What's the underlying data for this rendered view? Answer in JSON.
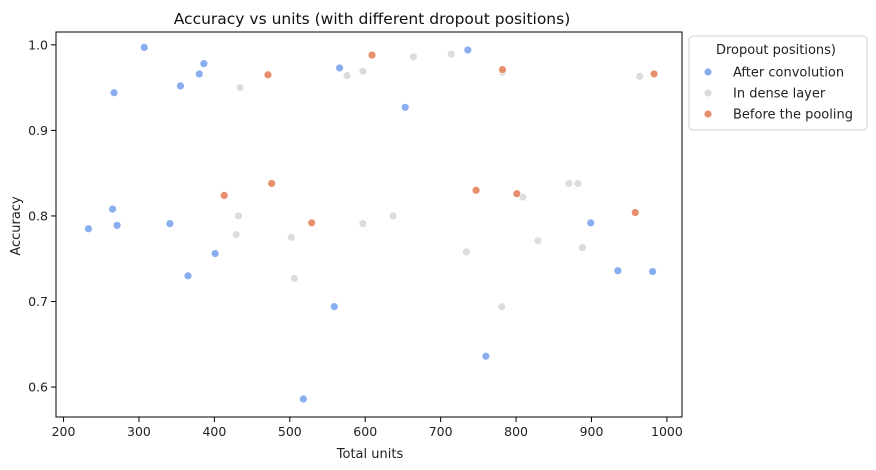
{
  "chart_data": {
    "type": "scatter",
    "title": "Accuracy vs units (with different dropout positions)",
    "xlabel": "Total units",
    "ylabel": "Accuracy",
    "xlim": [
      190,
      1020
    ],
    "ylim": [
      0.565,
      1.015
    ],
    "xticks": [
      200,
      300,
      400,
      500,
      600,
      700,
      800,
      900,
      1000
    ],
    "yticks": [
      0.6,
      0.7,
      0.8,
      0.9,
      1.0
    ],
    "ytick_labels": [
      "0.6",
      "0.7",
      "0.8",
      "0.9",
      "1.0"
    ],
    "grid": false,
    "legend": {
      "title": "Dropout positions)",
      "placement": "outside-top-right"
    },
    "series": [
      {
        "name": "After convolution",
        "color": "#88aef0",
        "points": [
          [
            233,
            0.785
          ],
          [
            265,
            0.808
          ],
          [
            267,
            0.944
          ],
          [
            271,
            0.789
          ],
          [
            307,
            0.997
          ],
          [
            341,
            0.791
          ],
          [
            355,
            0.952
          ],
          [
            365,
            0.73
          ],
          [
            380,
            0.966
          ],
          [
            386,
            0.978
          ],
          [
            401,
            0.756
          ],
          [
            518,
            0.586
          ],
          [
            559,
            0.694
          ],
          [
            566,
            0.973
          ],
          [
            653,
            0.927
          ],
          [
            736,
            0.994
          ],
          [
            760,
            0.636
          ],
          [
            899,
            0.792
          ],
          [
            935,
            0.736
          ],
          [
            981,
            0.735
          ]
        ]
      },
      {
        "name": "In dense layer",
        "color": "#dcdcdc",
        "points": [
          [
            429,
            0.778
          ],
          [
            432,
            0.8
          ],
          [
            434,
            0.95
          ],
          [
            502,
            0.775
          ],
          [
            506,
            0.727
          ],
          [
            576,
            0.964
          ],
          [
            597,
            0.969
          ],
          [
            597,
            0.791
          ],
          [
            637,
            0.8
          ],
          [
            664,
            0.986
          ],
          [
            714,
            0.989
          ],
          [
            734,
            0.758
          ],
          [
            782,
            0.968
          ],
          [
            781,
            0.694
          ],
          [
            809,
            0.822
          ],
          [
            829,
            0.771
          ],
          [
            870,
            0.838
          ],
          [
            882,
            0.838
          ],
          [
            888,
            0.763
          ],
          [
            964,
            0.963
          ]
        ]
      },
      {
        "name": "Before the pooling",
        "color": "#e8906e",
        "points": [
          [
            413,
            0.824
          ],
          [
            471,
            0.965
          ],
          [
            476,
            0.838
          ],
          [
            529,
            0.792
          ],
          [
            609,
            0.988
          ],
          [
            747,
            0.83
          ],
          [
            782,
            0.971
          ],
          [
            801,
            0.826
          ],
          [
            958,
            0.804
          ],
          [
            983,
            0.966
          ]
        ]
      }
    ]
  }
}
